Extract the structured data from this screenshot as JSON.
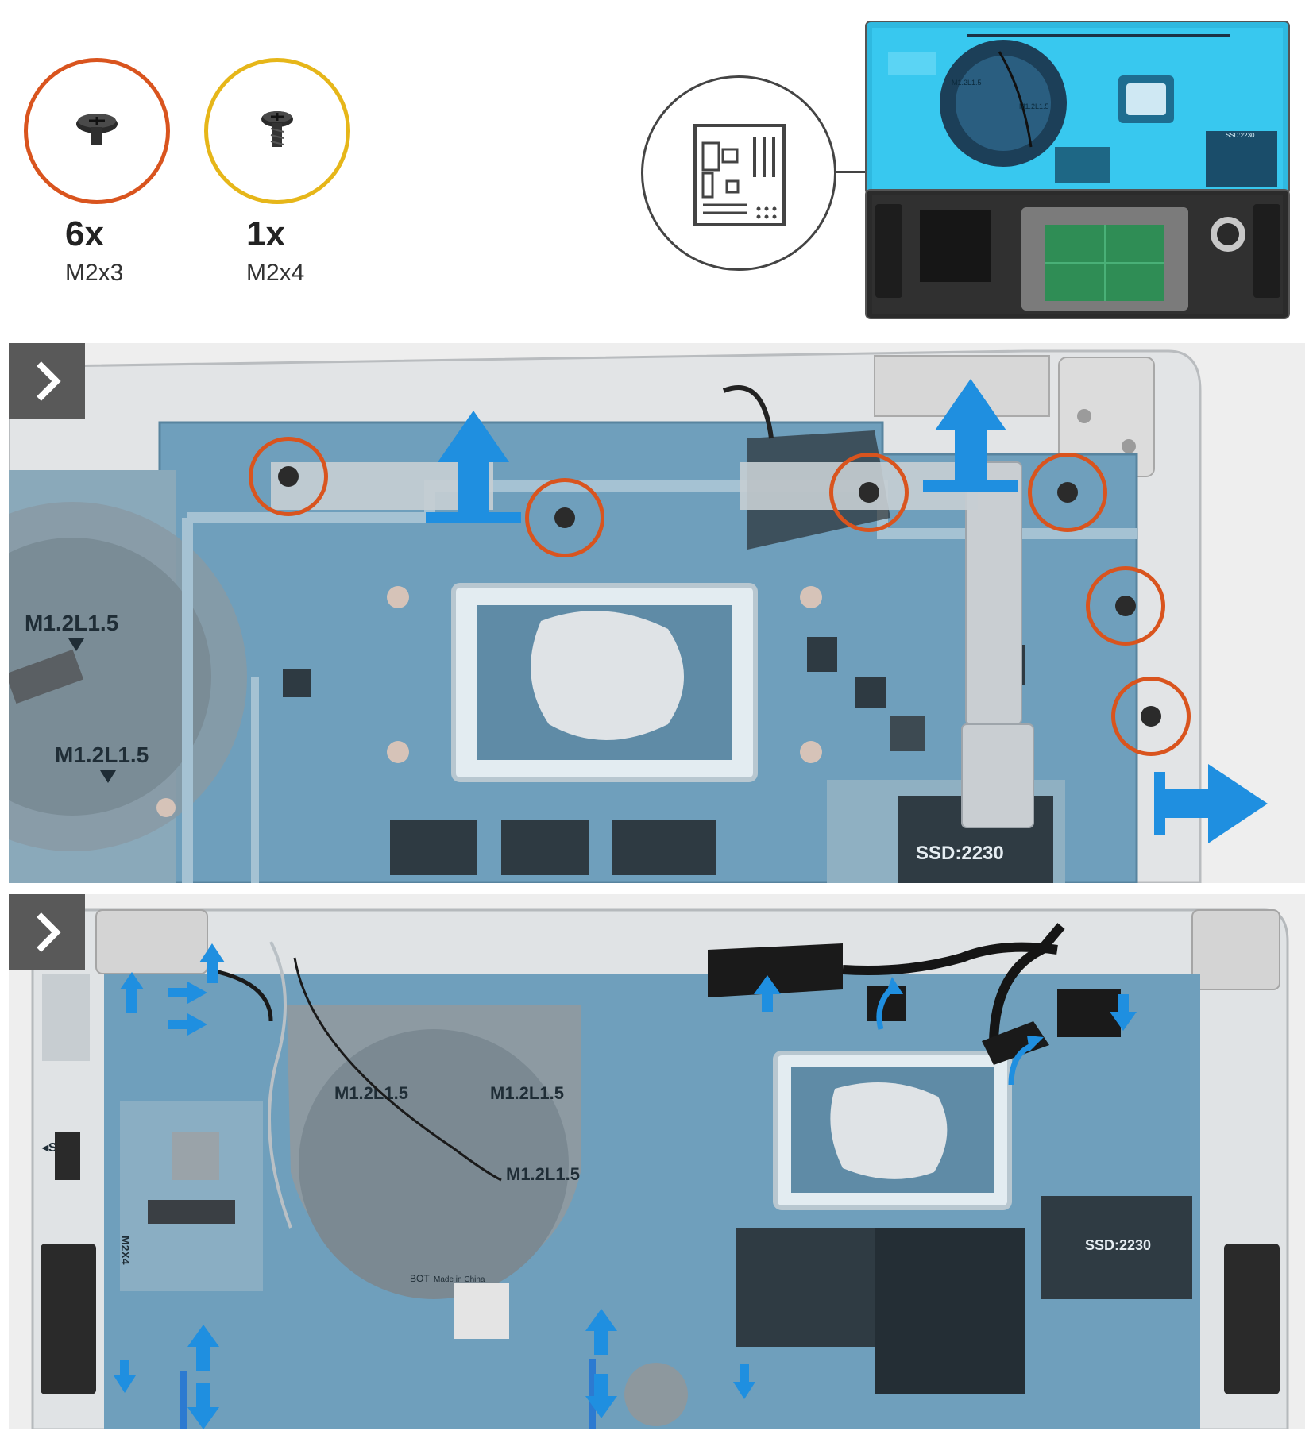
{
  "colors": {
    "m2x3_ring": "#d9541e",
    "m2x4_ring": "#e6b619",
    "arrow": "#1f8fe0",
    "board": "#6b9fbd",
    "board_highlight": "#37c6ee",
    "step_tab": "#595959",
    "outline": "#444444"
  },
  "legend": {
    "screws": [
      {
        "qty": "6x",
        "size": "M2x3",
        "ring_color": "#d9541e"
      },
      {
        "qty": "1x",
        "size": "M2x4",
        "ring_color": "#e6b619"
      }
    ]
  },
  "overview": {
    "component_icon": "motherboard-icon",
    "labels": {
      "fan_a": "M1.2L1.5",
      "fan_b": "M1.2L1.5",
      "ssd": "SSD:2230"
    }
  },
  "step1": {
    "icon": "chevron-right-icon",
    "labels": {
      "fan_top": "M1.2L1.5",
      "fan_bottom": "M1.2L1.5",
      "ssd": "SSD:2230"
    }
  },
  "step2": {
    "icon": "chevron-right-icon",
    "labels": {
      "fan_left": "M1.2L1.5",
      "fan_right": "M1.2L1.5",
      "fan_bottom": "M1.2L1.5",
      "sim": "◂SIM",
      "m2x4": "M2X4",
      "ssd": "SSD:2230",
      "bot": "BOT",
      "made_in": "Made in China"
    }
  }
}
